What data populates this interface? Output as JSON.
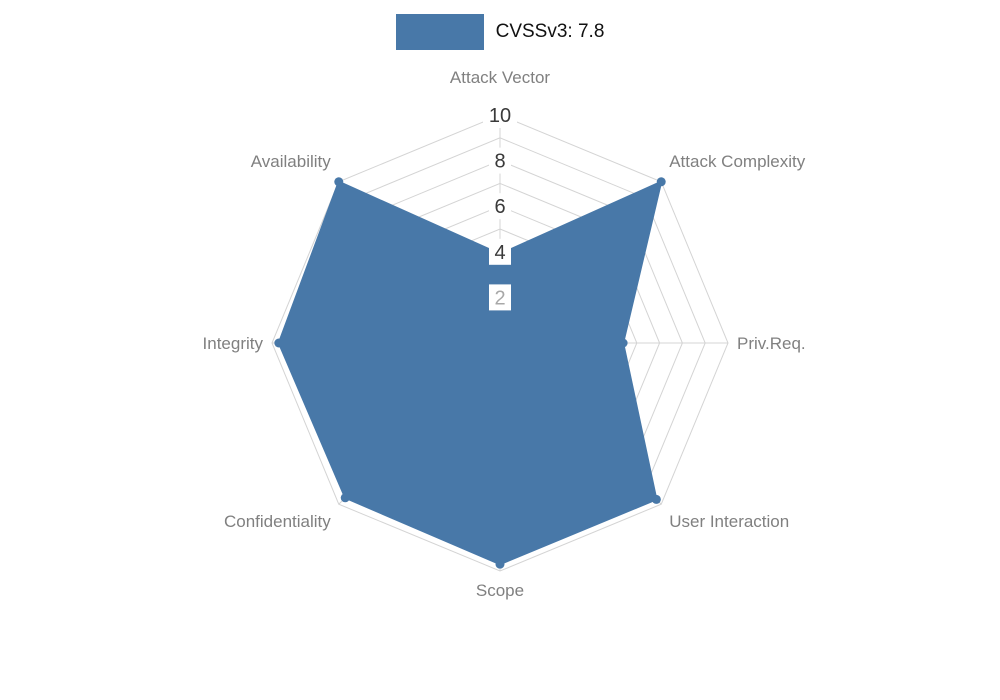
{
  "legend": {
    "label": "CVSSv3: 7.8",
    "swatch_color": "#4878a8"
  },
  "chart_data": {
    "type": "radar",
    "title": "CVSSv3: 7.8",
    "categories": [
      "Attack Vector",
      "Attack Complexity",
      "Priv.Req.",
      "User Interaction",
      "Scope",
      "Confidentiality",
      "Integrity",
      "Availability"
    ],
    "series": [
      {
        "name": "CVSSv3: 7.8",
        "values": [
          3.9,
          10,
          5.4,
          9.7,
          9.7,
          9.6,
          9.7,
          10
        ]
      }
    ],
    "ticks": [
      2,
      4,
      6,
      8,
      10
    ],
    "rings": 10,
    "max": 10,
    "legend_position": "top",
    "grid": true,
    "colors": {
      "fill": "#4878a8",
      "grid": "#d4d4d4",
      "axis_label": "#808080",
      "tick_label": "#3a3a3a",
      "tick_label_low": "#a8a8a8",
      "tick_backdrop": "#ffffff"
    }
  }
}
